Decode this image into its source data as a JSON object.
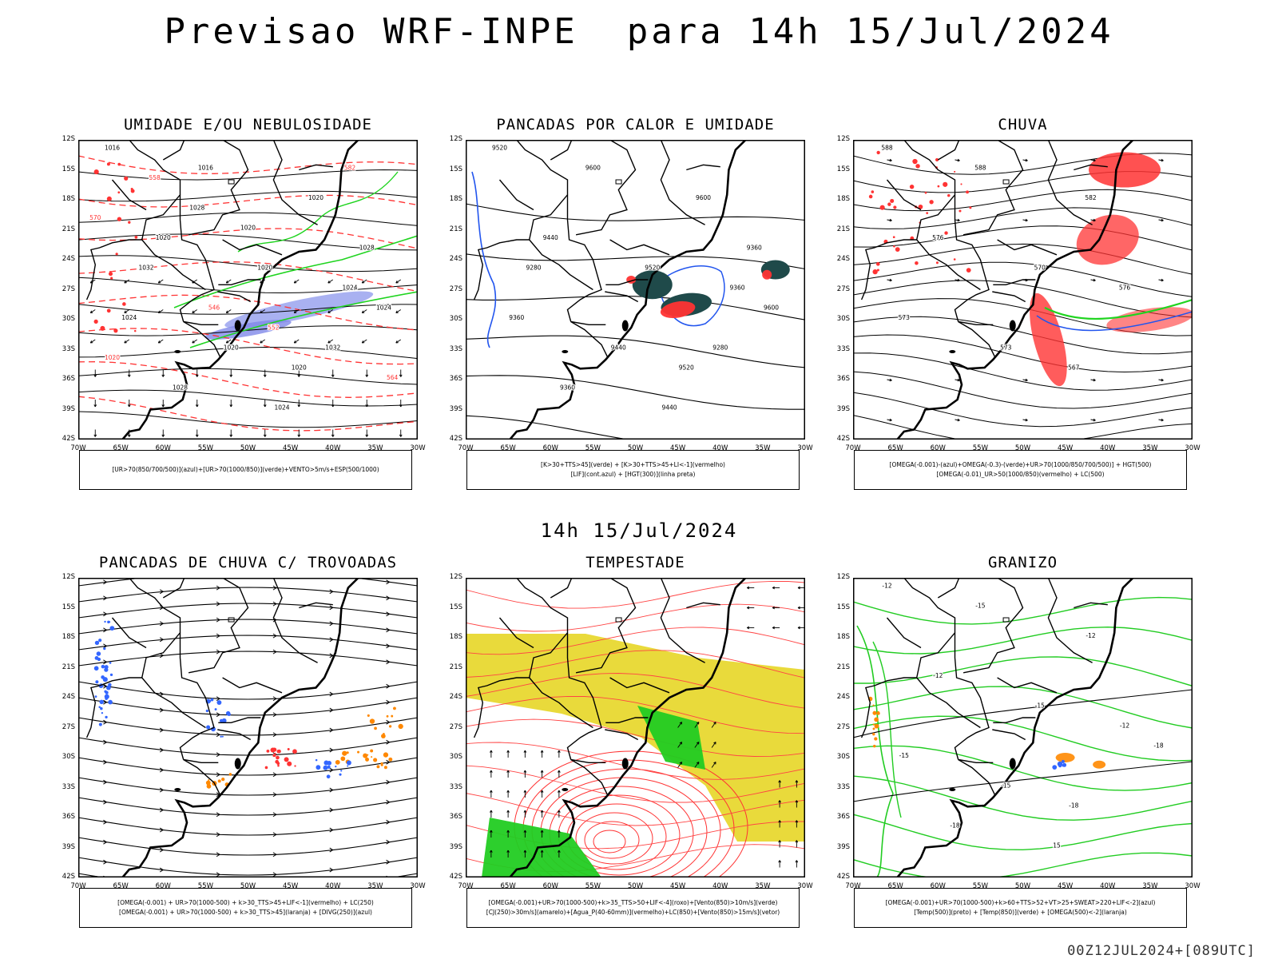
{
  "header": {
    "title": "Previsao WRF-INPE  para 14h 15/Jul/2024",
    "subtitle": "14h 15/Jul/2024",
    "footer": "00Z12JUL2024+[089UTC]"
  },
  "axes": {
    "lat_ticks": [
      "12S",
      "15S",
      "18S",
      "21S",
      "24S",
      "27S",
      "30S",
      "33S",
      "36S",
      "39S",
      "42S"
    ],
    "lon_ticks": [
      "70W",
      "65W",
      "60W",
      "55W",
      "50W",
      "45W",
      "40W",
      "35W",
      "30W"
    ]
  },
  "colors": {
    "blue": "#3355ff",
    "green": "#22dd22",
    "red": "#ff3333",
    "orange": "#ff8800",
    "yellow": "#e8d830",
    "darkteal": "#1f4a4a",
    "lavender": "#a0a8f0"
  },
  "panels": [
    {
      "id": "umidade",
      "title": "UMIDADE E/OU NEBULOSIDADE",
      "legend": [
        "[UR>70(850/700/500)](azul)+[UR>70(1000/850)](verde)+VENTO>5m/s+ESP(500/1000)"
      ],
      "contour_labels": [
        "1016",
        "1016",
        "1020",
        "1020",
        "1020",
        "1024",
        "1024",
        "1020",
        "1020",
        "1024",
        "1028",
        "1024",
        "1028",
        "1032",
        "1032",
        "1028",
        "1020",
        "1020",
        "570",
        "564",
        "552",
        "546",
        "558",
        "582"
      ]
    },
    {
      "id": "pancadas-calor",
      "title": "PANCADAS POR CALOR E UMIDADE",
      "legend": [
        "[K>30+TTS>45](verde) + [K>30+TTS>45+LI<-1](vermelho)",
        "[LIF](cont.azul) + [HGT(300)](linha preta)"
      ],
      "contour_labels": [
        "9520",
        "9600",
        "9600",
        "9440",
        "9520",
        "9360",
        "9360",
        "9440",
        "9520",
        "9600",
        "9360",
        "9440",
        "9360",
        "9280",
        "9280"
      ]
    },
    {
      "id": "chuva",
      "title": "CHUVA",
      "legend": [
        "[OMEGA(-0.001)-(azul)+OMEGA(-0.3)-(verde)+UR>70(1000/850/700/500)] + HGT(500)",
        "[OMEGA(-0.01)_UR>50(1000/850)(vermelho) + LC(500)"
      ],
      "contour_labels": [
        "588",
        "588",
        "582",
        "576",
        "570",
        "576",
        "573",
        "573",
        "567"
      ]
    },
    {
      "id": "trovoadas",
      "title": "PANCADAS DE CHUVA C/ TROVOADAS",
      "legend": [
        "[OMEGA(-0.001) + UR>70(1000-500) + k>30_TTS>45+LIF<-1](vermelho) + LC(250)",
        "[OMEGA(-0.001) + UR>70(1000-500) + k>30_TTS>45](laranja) + [DIVG(250)](azul)"
      ],
      "contour_labels": []
    },
    {
      "id": "tempestade",
      "title": "TEMPESTADE",
      "legend": [
        "[OMEGA(-0.001)+UR>70(1000-500)+k>35_TTS>50+LIF<-4](roxo)+[Vento(850)>10m/s](verde)",
        "[CJ(250)>30m/s](amarelo)+[Agua_P(40-60mm)](vermelho)+LC(850)+[Vento(850)>15m/s](vetor)"
      ],
      "contour_labels": []
    },
    {
      "id": "granizo",
      "title": "GRANIZO",
      "legend": [
        "[OMEGA(-0.001)+UR>70(1000-500)+k>60+TTS>52+VT>25+SWEAT>220+LIF<-2](azul)",
        "[Temp(500)](preto) + [Temp(850)](verde) + [OMEGA(500)<-2](laranja)"
      ],
      "contour_labels": [
        "-12",
        "-15",
        "-12",
        "-12",
        "-15",
        "-12",
        "-15",
        "-15",
        "-18",
        "-18",
        "-18",
        "15"
      ]
    }
  ],
  "chart_data": {
    "type": "other",
    "title": "Previsao WRF-INPE  para 14h 15/Jul/2024",
    "lat_range": [
      "12S",
      "42S"
    ],
    "lon_range": [
      "70W",
      "30W"
    ],
    "panel_titles": [
      "UMIDADE E/OU NEBULOSIDADE",
      "PANCADAS POR CALOR E UMIDADE",
      "CHUVA",
      "PANCADAS DE CHUVA C/ TROVOADAS",
      "TEMPESTADE",
      "GRANIZO"
    ]
  }
}
